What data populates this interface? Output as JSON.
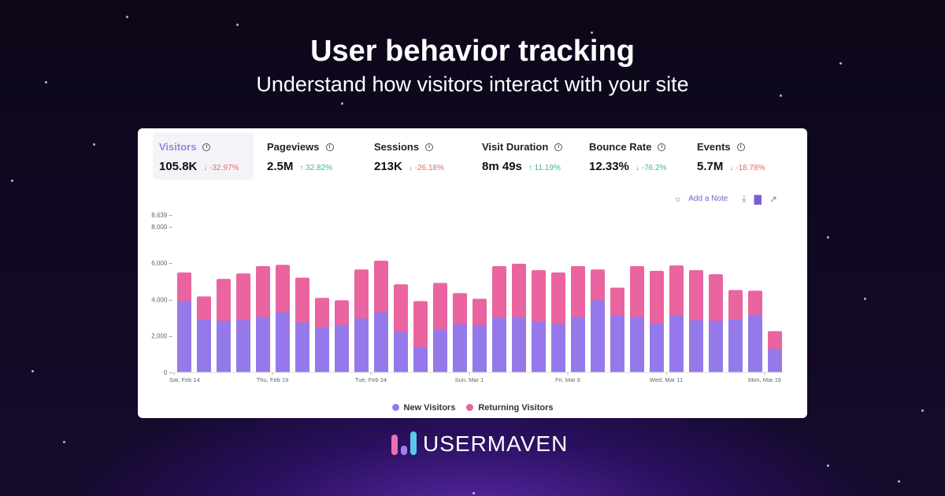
{
  "header": {
    "title": "User behavior tracking",
    "subtitle": "Understand how visitors interact with your site"
  },
  "metrics": [
    {
      "label": "Visitors",
      "value": "105.8K",
      "change": "-32.97%",
      "direction": "down",
      "active": true
    },
    {
      "label": "Pageviews",
      "value": "2.5M",
      "change": "32.82%",
      "direction": "up"
    },
    {
      "label": "Sessions",
      "value": "213K",
      "change": "-26.18%",
      "direction": "down"
    },
    {
      "label": "Visit Duration",
      "value": "8m 49s",
      "change": "11.19%",
      "direction": "up"
    },
    {
      "label": "Bounce Rate",
      "value": "12.33%",
      "change": "-76.2%",
      "direction": "down-good"
    },
    {
      "label": "Events",
      "value": "5.7M",
      "change": "-18.78%",
      "direction": "down"
    }
  ],
  "toolbar": {
    "add_note": "Add a Note",
    "icons": [
      "comment-icon",
      "download-icon",
      "bar-chart-icon",
      "line-chart-icon"
    ]
  },
  "brand": {
    "name": "USERMAVEN"
  },
  "colors": {
    "new": "#9579ea",
    "returning": "#ea64a0",
    "accent": "#7b5fd0"
  },
  "chart_data": {
    "type": "bar",
    "stacked": true,
    "categories": [
      "Feb 14",
      "Feb 15",
      "Feb 16",
      "Feb 17",
      "Feb 18",
      "Feb 19",
      "Feb 20",
      "Feb 21",
      "Feb 22",
      "Feb 23",
      "Feb 24",
      "Feb 25",
      "Feb 26",
      "Feb 27",
      "Feb 28",
      "Mar 1",
      "Mar 2",
      "Mar 3",
      "Mar 4",
      "Mar 5",
      "Mar 6",
      "Mar 7",
      "Mar 8",
      "Mar 9",
      "Mar 10",
      "Mar 11",
      "Mar 12",
      "Mar 13",
      "Mar 14",
      "Mar 15",
      "Mar 16"
    ],
    "tick_labels": [
      "Sat, Feb 14",
      "Thu, Feb 19",
      "Tue, Feb 24",
      "Sun, Mar 1",
      "Fri, Mar 6",
      "Wed, Mar 11",
      "Mon, Mar 16"
    ],
    "y_ticks": [
      "0",
      "2,000",
      "4,000",
      "6,000",
      "8,000",
      "8,639"
    ],
    "ylim": [
      0,
      8639
    ],
    "legend": "bottom",
    "series": [
      {
        "name": "New Visitors",
        "values": [
          3900,
          2900,
          2830,
          2870,
          3040,
          3300,
          2740,
          2480,
          2600,
          2960,
          3300,
          2220,
          1390,
          2350,
          2650,
          2600,
          3000,
          3040,
          2780,
          2650,
          3040,
          3960,
          3130,
          3040,
          2700,
          3130,
          2870,
          2830,
          2910,
          3170,
          1300
        ]
      },
      {
        "name": "Returning Visitors",
        "values": [
          1580,
          1270,
          2300,
          2560,
          2790,
          2600,
          2460,
          1610,
          1360,
          2690,
          2830,
          2610,
          2520,
          2560,
          1700,
          1440,
          2830,
          2920,
          2830,
          2830,
          2790,
          1690,
          1520,
          2790,
          2870,
          2740,
          2740,
          2560,
          1610,
          1310,
          960
        ]
      }
    ]
  }
}
